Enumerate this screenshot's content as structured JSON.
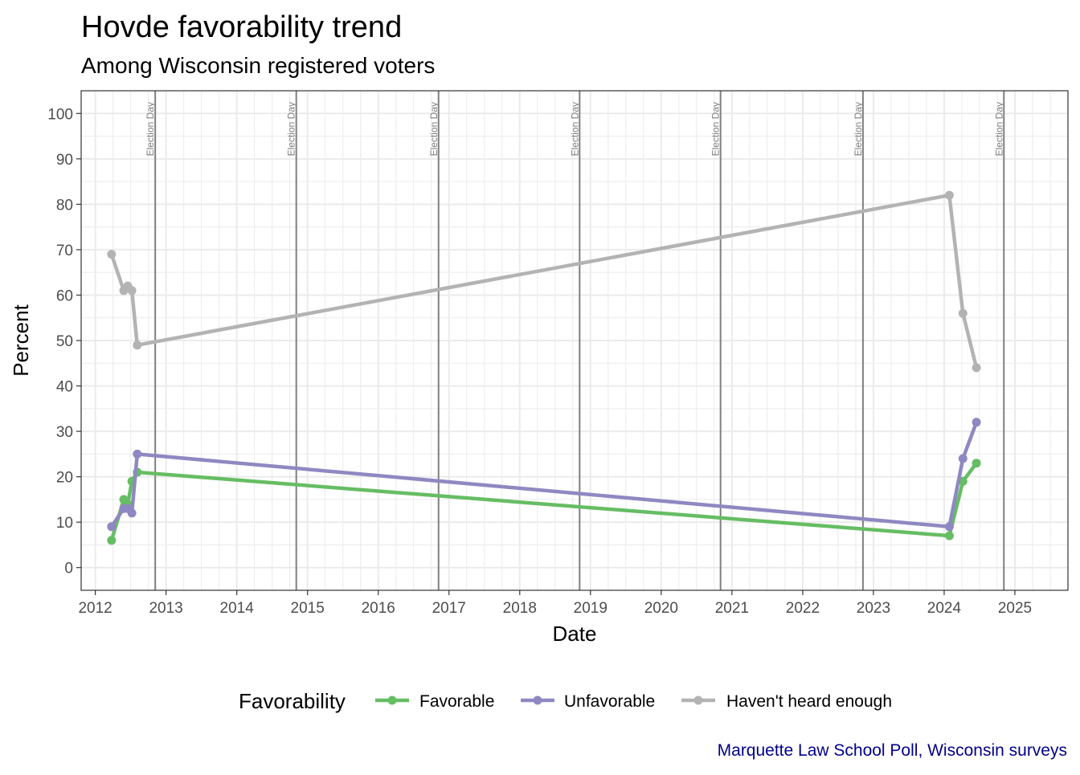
{
  "chart_data": {
    "type": "line",
    "title": "Hovde favorability trend",
    "subtitle": "Among Wisconsin registered voters",
    "xlabel": "Date",
    "ylabel": "Percent",
    "xlim": [
      2011.8,
      2025.75
    ],
    "ylim": [
      -5,
      105
    ],
    "x_ticks": [
      "2012",
      "2013",
      "2014",
      "2015",
      "2016",
      "2017",
      "2018",
      "2019",
      "2020",
      "2021",
      "2022",
      "2023",
      "2024",
      "2025"
    ],
    "y_ticks": [
      "0",
      "10",
      "20",
      "30",
      "40",
      "50",
      "60",
      "70",
      "80",
      "90",
      "100"
    ],
    "grid": true,
    "event_lines": [
      {
        "label": "Election Day",
        "x": "2012-11-06"
      },
      {
        "label": "Election Day",
        "x": "2014-11-04"
      },
      {
        "label": "Election Day",
        "x": "2016-11-08"
      },
      {
        "label": "Election Day",
        "x": "2018-11-06"
      },
      {
        "label": "Election Day",
        "x": "2020-11-03"
      },
      {
        "label": "Election Day",
        "x": "2022-11-08"
      },
      {
        "label": "Election Day",
        "x": "2024-11-05"
      }
    ],
    "legend": {
      "title": "Favorability",
      "position": "bottom"
    },
    "series": [
      {
        "name": "Favorable",
        "color": "#66BD63",
        "x": [
          "2012-03-25",
          "2012-05-27",
          "2012-06-17",
          "2012-07-08",
          "2012-08-05",
          "2024-01-28",
          "2024-04-07",
          "2024-06-16"
        ],
        "y": [
          6,
          15,
          14,
          19,
          21,
          7,
          19,
          23
        ]
      },
      {
        "name": "Unfavorable",
        "color": "#8E88C2",
        "x": [
          "2012-03-25",
          "2012-05-27",
          "2012-06-17",
          "2012-07-08",
          "2012-08-05",
          "2024-01-28",
          "2024-04-07",
          "2024-06-16"
        ],
        "y": [
          9,
          13,
          13,
          12,
          25,
          9,
          24,
          32
        ]
      },
      {
        "name": "Haven't heard enough",
        "color": "#B3B3B3",
        "x": [
          "2012-03-25",
          "2012-05-27",
          "2012-06-17",
          "2012-07-08",
          "2012-08-05",
          "2024-01-28",
          "2024-04-07",
          "2024-06-16"
        ],
        "y": [
          69,
          61,
          62,
          61,
          49,
          82,
          56,
          44
        ]
      }
    ],
    "caption": "Marquette Law School Poll, Wisconsin surveys",
    "caption_color": "#00008B",
    "grid_color": "#EBEBEB",
    "event_line_color": "#7F7F7F"
  }
}
